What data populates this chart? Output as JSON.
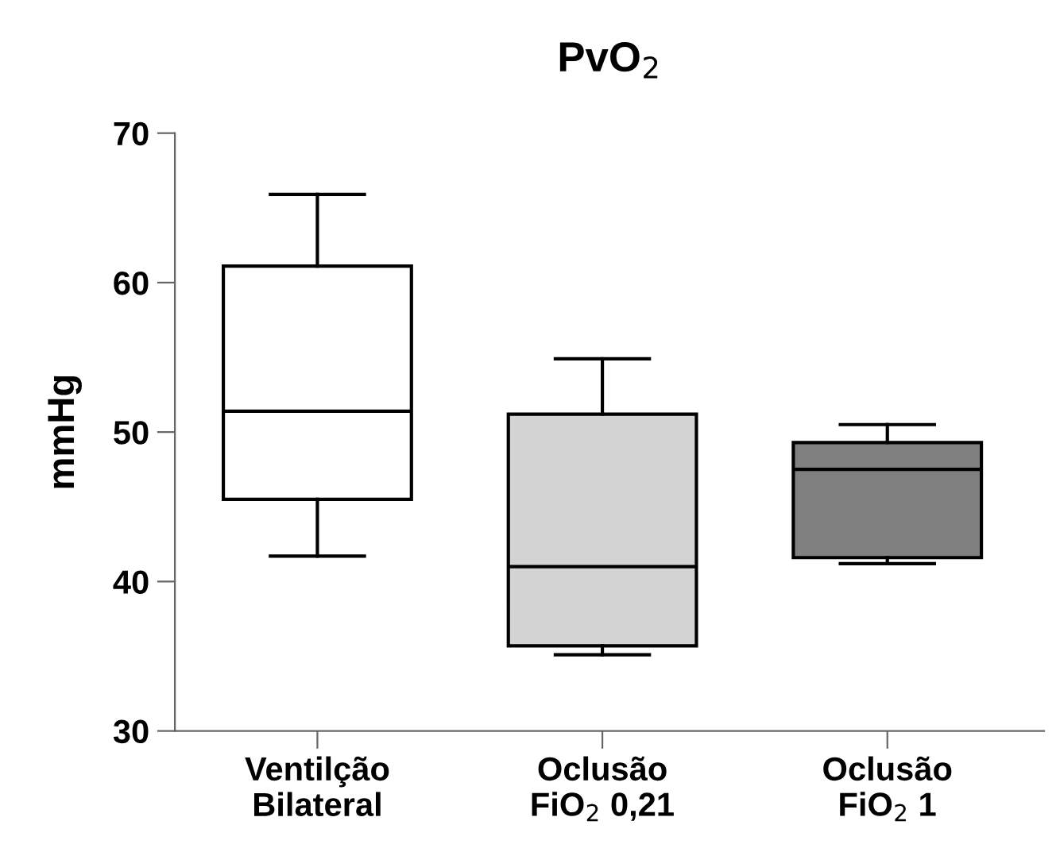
{
  "chart_data": {
    "type": "box",
    "title": "PvO$_{2}$",
    "ylabel": "mmHg",
    "categories": [
      "Ventilção\nBilateral",
      "Oclusão\nFiO$_{2}$ 0,21",
      "Oclusão\nFiO$_{2}$ 1"
    ],
    "boxes": [
      {
        "low": 41.7,
        "q1": 45.5,
        "median": 51.4,
        "q3": 61.1,
        "high": 65.9
      },
      {
        "low": 35.1,
        "q1": 35.7,
        "median": 41.0,
        "q3": 51.2,
        "high": 54.9
      },
      {
        "low": 41.2,
        "q1": 41.6,
        "median": 47.5,
        "q3": 49.3,
        "high": 50.5
      }
    ],
    "colors": [
      "#ffffff",
      "#d3d3d3",
      "#808080"
    ],
    "ylim": [
      30,
      70
    ],
    "yticks": [
      30,
      40,
      50,
      60,
      70
    ],
    "grid": false,
    "legend": false
  }
}
